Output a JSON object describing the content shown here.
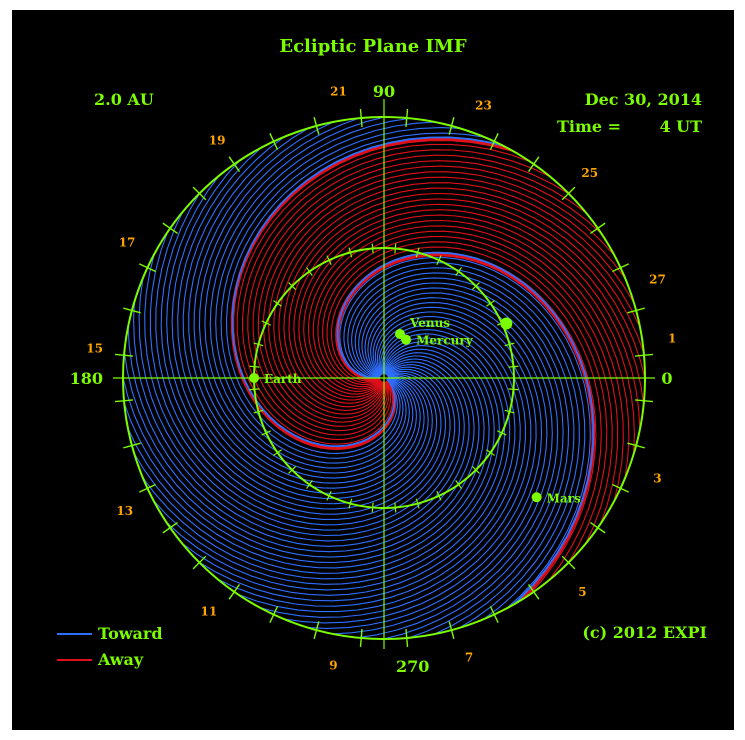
{
  "title": "Ecliptic Plane IMF",
  "scale_label": "2.0 AU",
  "date": "Dec 30, 2014",
  "time_label": "Time =",
  "time_value": "4 UT",
  "copyright": "(c) 2012 EXPI",
  "legend": [
    {
      "label": "Toward",
      "color": "#2f6fff"
    },
    {
      "label": "Away",
      "color": "#e0101a"
    }
  ],
  "colors": {
    "background": "#000000",
    "frame": "#7CFC00",
    "label_green": "#7CFC00",
    "label_orange": "#FFA500",
    "toward": "#2f6fff",
    "away": "#e0101a"
  },
  "angles": [
    {
      "text": "90",
      "deg": 90
    },
    {
      "text": "180",
      "deg": 180
    },
    {
      "text": "270",
      "deg": 270
    },
    {
      "text": "0",
      "deg": 0
    }
  ],
  "carrington_labels": [
    {
      "text": "1",
      "deg": 8
    },
    {
      "text": "3",
      "deg": -20
    },
    {
      "text": "5",
      "deg": -47
    },
    {
      "text": "7",
      "deg": -73
    },
    {
      "text": "9",
      "deg": -100
    },
    {
      "text": "11",
      "deg": -127
    },
    {
      "text": "13",
      "deg": -153
    },
    {
      "text": "15",
      "deg": -186
    },
    {
      "text": "17",
      "deg": -208
    },
    {
      "text": "19",
      "deg": -235
    },
    {
      "text": "21",
      "deg": -261
    },
    {
      "text": "23",
      "deg": -290
    },
    {
      "text": "25",
      "deg": -315
    },
    {
      "text": "27",
      "deg": -340
    }
  ],
  "planets": [
    {
      "name": "Earth",
      "r_au": 1.0,
      "deg": 180
    },
    {
      "name": "Mercury",
      "r_au": 0.34,
      "deg": 60
    },
    {
      "name": "Venus",
      "r_au": 0.36,
      "deg": 70
    },
    {
      "name": "Mars",
      "r_au": 1.49,
      "deg": -38
    },
    {
      "name": "",
      "r_au": 1.03,
      "deg": 24
    }
  ],
  "sectors": {
    "boundaries_deg": [
      200,
      320
    ],
    "away_range_deg": [
      200,
      320
    ]
  }
}
